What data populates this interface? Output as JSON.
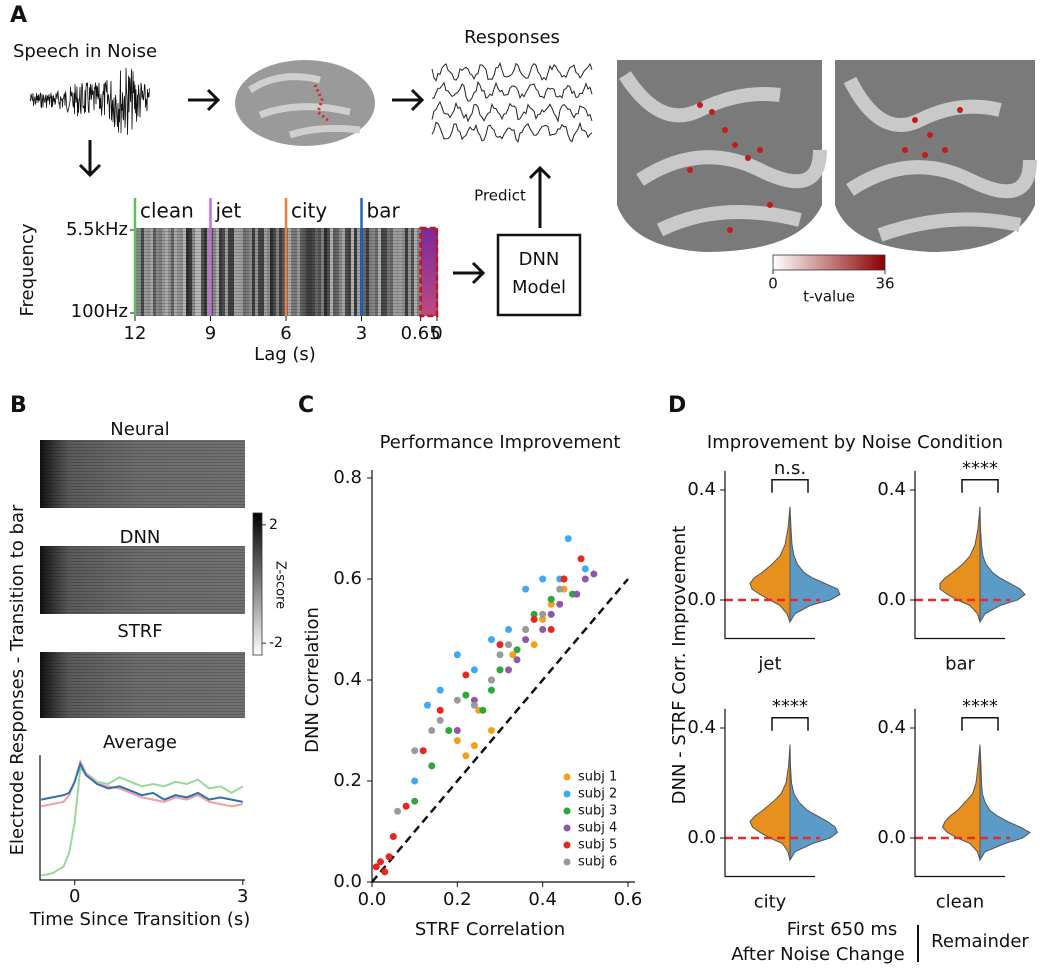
{
  "panel_labels": [
    "A",
    "B",
    "C",
    "D"
  ],
  "panel_a": {
    "input_label": "Speech in Noise",
    "responses_label": "Responses",
    "predict_label": "Predict",
    "model_label": [
      "DNN",
      "Model"
    ],
    "spectrogram": {
      "ylabel": "Frequency",
      "yticks": [
        "5.5kHz",
        "100Hz"
      ],
      "xlabel": "Lag (s)",
      "xlim": [
        12,
        0
      ],
      "xticks": [
        12,
        9,
        6,
        3,
        0.65,
        0
      ],
      "conditions": [
        {
          "name": "clean",
          "lag": 12,
          "color": "#5cc15c"
        },
        {
          "name": "jet",
          "lag": 9,
          "color": "#c56be3"
        },
        {
          "name": "city",
          "lag": 6,
          "color": "#ef7d3c"
        },
        {
          "name": "bar",
          "lag": 3,
          "color": "#2363c0"
        }
      ],
      "window": [
        0.65,
        0
      ]
    },
    "colorbar": {
      "label": "t-value",
      "lim": [
        0,
        36
      ],
      "ticks": [
        0,
        36
      ],
      "colors": [
        "#ffffff",
        "#8b0000"
      ]
    }
  },
  "panel_b": {
    "ylabel": "Electrode Responses - Transition to bar",
    "colorbar": {
      "label": "Z-score",
      "lim": [
        -2.4,
        2.4
      ],
      "ticks": [
        2,
        -2
      ],
      "colors": [
        "#ffffff",
        "#000000"
      ]
    }
  },
  "chart_data": [
    {
      "type": "line",
      "title": "Average",
      "xlabel": "Time Since Transition (s)",
      "x": [
        -0.6,
        -0.4,
        -0.2,
        -0.1,
        0,
        0.1,
        0.2,
        0.4,
        0.6,
        0.8,
        1.0,
        1.2,
        1.4,
        1.6,
        1.8,
        2.0,
        2.2,
        2.4,
        2.6,
        2.8,
        3.0
      ],
      "xlim": [
        -0.62,
        3.04
      ],
      "xticks": [
        0,
        3
      ],
      "ylim": [
        -1.6,
        1.2
      ],
      "series": [
        {
          "name": "Neural",
          "color": "#2f6fb5",
          "values": [
            0.2,
            0.25,
            0.3,
            0.35,
            0.6,
            1.0,
            0.75,
            0.55,
            0.45,
            0.5,
            0.4,
            0.3,
            0.35,
            0.2,
            0.3,
            0.25,
            0.35,
            0.2,
            0.25,
            0.2,
            0.15
          ]
        },
        {
          "name": "DNN",
          "color": "#f2a0a0",
          "values": [
            0.05,
            0.1,
            0.15,
            0.3,
            0.6,
            1.05,
            0.8,
            0.55,
            0.5,
            0.45,
            0.35,
            0.25,
            0.2,
            0.15,
            0.25,
            0.2,
            0.3,
            0.15,
            0.1,
            0.05,
            0.1
          ]
        },
        {
          "name": "STRF",
          "color": "#2ca02c",
          "line_color": "#98d898",
          "values": [
            -1.5,
            -1.45,
            -1.3,
            -1.0,
            -0.3,
            0.9,
            0.8,
            0.6,
            0.55,
            0.7,
            0.6,
            0.5,
            0.55,
            0.5,
            0.6,
            0.55,
            0.65,
            0.45,
            0.5,
            0.35,
            0.5
          ]
        }
      ]
    },
    {
      "type": "scatter",
      "title": "Performance Improvement",
      "xlabel": "STRF Correlation",
      "ylabel": "DNN Correlation",
      "xlim": [
        0,
        0.6
      ],
      "ylim": [
        0,
        0.8
      ],
      "xticks": [
        {
          "value": 0,
          "label": "0.0"
        },
        0.2,
        0.4,
        0.6
      ],
      "yticks": [
        {
          "value": 0,
          "label": "0.0"
        },
        0.2,
        0.4,
        0.6,
        0.8
      ],
      "identity_line": true,
      "legend": "lower right",
      "series": [
        {
          "name": "subj 1",
          "color": "#f5a01a",
          "x": [
            0.2,
            0.22,
            0.25,
            0.28,
            0.3,
            0.33,
            0.36,
            0.38,
            0.4,
            0.42,
            0.45,
            0.24
          ],
          "values": [
            0.28,
            0.25,
            0.34,
            0.3,
            0.42,
            0.45,
            0.5,
            0.47,
            0.52,
            0.55,
            0.58,
            0.27
          ]
        },
        {
          "name": "subj 2",
          "color": "#3fa9f5",
          "x": [
            0.1,
            0.13,
            0.16,
            0.2,
            0.24,
            0.28,
            0.32,
            0.36,
            0.4,
            0.44,
            0.46,
            0.5
          ],
          "values": [
            0.2,
            0.35,
            0.38,
            0.45,
            0.42,
            0.48,
            0.5,
            0.58,
            0.6,
            0.6,
            0.68,
            0.62
          ]
        },
        {
          "name": "subj 3",
          "color": "#2aa83a",
          "x": [
            0.1,
            0.14,
            0.18,
            0.22,
            0.26,
            0.3,
            0.34,
            0.38,
            0.42,
            0.45,
            0.47,
            0.28
          ],
          "values": [
            0.16,
            0.23,
            0.3,
            0.37,
            0.34,
            0.42,
            0.46,
            0.53,
            0.56,
            0.6,
            0.57,
            0.38
          ]
        },
        {
          "name": "subj 4",
          "color": "#8e5aa8",
          "x": [
            0.2,
            0.24,
            0.28,
            0.32,
            0.36,
            0.4,
            0.44,
            0.48,
            0.5,
            0.52,
            0.34,
            0.42
          ],
          "values": [
            0.3,
            0.36,
            0.4,
            0.42,
            0.48,
            0.5,
            0.55,
            0.57,
            0.6,
            0.61,
            0.44,
            0.53
          ]
        },
        {
          "name": "subj 5",
          "color": "#e8261f",
          "x": [
            0.01,
            0.02,
            0.03,
            0.04,
            0.05,
            0.08,
            0.12,
            0.16,
            0.22,
            0.3,
            0.38,
            0.42,
            0.45,
            0.49
          ],
          "values": [
            0.03,
            0.04,
            0.02,
            0.05,
            0.09,
            0.15,
            0.26,
            0.34,
            0.41,
            0.47,
            0.52,
            0.5,
            0.6,
            0.64
          ]
        },
        {
          "name": "subj 6",
          "color": "#9a9a9a",
          "x": [
            0.06,
            0.1,
            0.14,
            0.16,
            0.2,
            0.24,
            0.28,
            0.32,
            0.36,
            0.4,
            0.44,
            0.3
          ],
          "values": [
            0.14,
            0.26,
            0.3,
            0.32,
            0.36,
            0.35,
            0.4,
            0.47,
            0.5,
            0.53,
            0.58,
            0.45
          ]
        }
      ]
    },
    {
      "type": "violin",
      "title": "Improvement by Noise Condition",
      "ylabel": "DNN - STRF Corr. Improvement",
      "ylim": [
        -0.14,
        0.47
      ],
      "yticks": [
        {
          "value": 0,
          "label": "0.0"
        },
        0.4
      ],
      "reference_line": {
        "value": 0,
        "color": "#e82a2a"
      },
      "y": [
        -0.08,
        -0.05,
        -0.02,
        0,
        0.02,
        0.04,
        0.06,
        0.08,
        0.1,
        0.13,
        0.16,
        0.2,
        0.26,
        0.34
      ],
      "series": [
        {
          "name": [
            "First 650 ms",
            "After Noise Change"
          ],
          "color": "#e8901e"
        },
        {
          "name": "Remainder",
          "color": "#5b9bc8"
        }
      ],
      "groups": [
        {
          "category": "jet",
          "significance": "n.s.",
          "density": [
            [
              0,
              0.06,
              0.2,
              0.4,
              0.6,
              0.76,
              0.8,
              0.72,
              0.56,
              0.36,
              0.2,
              0.1,
              0.04,
              0
            ],
            [
              0,
              0.1,
              0.4,
              0.8,
              1,
              0.95,
              0.7,
              0.45,
              0.28,
              0.15,
              0.08,
              0.04,
              0.02,
              0
            ]
          ]
        },
        {
          "category": "bar",
          "significance": "****",
          "density": [
            [
              0,
              0.05,
              0.2,
              0.45,
              0.65,
              0.8,
              0.8,
              0.7,
              0.55,
              0.35,
              0.2,
              0.1,
              0.04,
              0
            ],
            [
              0,
              0.1,
              0.4,
              0.75,
              0.9,
              0.8,
              0.6,
              0.4,
              0.25,
              0.12,
              0.06,
              0.03,
              0.01,
              0
            ]
          ]
        },
        {
          "category": "city",
          "significance": "****",
          "density": [
            [
              0,
              0.04,
              0.15,
              0.4,
              0.6,
              0.75,
              0.8,
              0.7,
              0.55,
              0.35,
              0.18,
              0.08,
              0.03,
              0
            ],
            [
              0,
              0.1,
              0.45,
              0.8,
              0.95,
              0.9,
              0.75,
              0.55,
              0.35,
              0.18,
              0.08,
              0.03,
              0.01,
              0
            ]
          ]
        },
        {
          "category": "clean",
          "significance": "****",
          "density": [
            [
              0,
              0.05,
              0.2,
              0.45,
              0.65,
              0.75,
              0.7,
              0.6,
              0.45,
              0.3,
              0.15,
              0.08,
              0.04,
              0
            ],
            [
              0,
              0.1,
              0.5,
              0.85,
              1,
              0.8,
              0.55,
              0.35,
              0.2,
              0.1,
              0.05,
              0.03,
              0.02,
              0
            ]
          ]
        }
      ]
    }
  ]
}
